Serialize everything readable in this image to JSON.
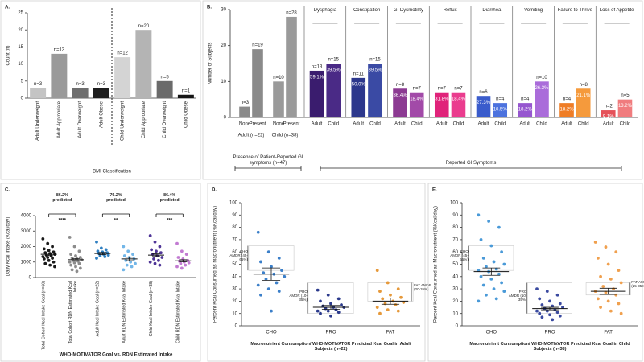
{
  "chart_data": [
    {
      "type": "bar",
      "label": "A.",
      "ylabel": "Count (n)",
      "xlabel": "BMI Classification",
      "categories": [
        "Adult Underweight",
        "Adult Appropriate",
        "Adult Overweight",
        "Adult Obese",
        "Child Underweight",
        "Child Appropriate",
        "Child Overweight",
        "Child Obese"
      ],
      "values": [
        3,
        13,
        3,
        3,
        12,
        20,
        5,
        1
      ],
      "value_labels": [
        "n=3",
        "n=13",
        "n=3",
        "n=3",
        "n=12",
        "n=20",
        "n=5",
        "n=1"
      ],
      "colors": [
        "#c4c4c4",
        "#9a9a9a",
        "#6e6e6e",
        "#1e1e1e",
        "#d4d4d4",
        "#b4b4b4",
        "#6a6a6a",
        "#151515"
      ],
      "ylim": [
        0,
        25
      ],
      "yticks": [
        0,
        5,
        10,
        15,
        20,
        25
      ]
    },
    {
      "type": "grouped_bar",
      "label": "B.",
      "ylabel": "Number of Subjects",
      "ylim": [
        0,
        30
      ],
      "yticks": [
        0,
        10,
        20,
        30
      ],
      "groups": [
        {
          "label": "Adult (n=22)",
          "categories": [
            "None",
            "Present"
          ],
          "values": [
            3,
            19
          ],
          "value_labels": [
            "n=3",
            "n=19"
          ],
          "colors": [
            "#8a8a8a",
            "#8a8a8a"
          ]
        },
        {
          "label": "Child (n=38)",
          "categories": [
            "None",
            "Present"
          ],
          "values": [
            10,
            28
          ],
          "value_labels": [
            "n=10",
            "n=28"
          ],
          "colors": [
            "#9a9a9a",
            "#9a9a9a"
          ]
        },
        {
          "title": "Dysphagia",
          "categories": [
            "Adult",
            "Child"
          ],
          "values": [
            13,
            15
          ],
          "value_labels": [
            "n=13",
            "n=15"
          ],
          "percent_labels": [
            "59.1%",
            "39.5%"
          ],
          "colors": [
            "#3a1c6e",
            "#4a2a86"
          ]
        },
        {
          "title": "Constipation",
          "categories": [
            "Adult",
            "Child"
          ],
          "values": [
            11,
            15
          ],
          "value_labels": [
            "n=11",
            "n=15"
          ],
          "percent_labels": [
            "50.0%",
            "39.5%"
          ],
          "colors": [
            "#2c378c",
            "#3a4aa4"
          ]
        },
        {
          "title": "GI Dysmotility",
          "categories": [
            "Adult",
            "Child"
          ],
          "values": [
            8,
            7
          ],
          "value_labels": [
            "n=8",
            "n=7"
          ],
          "percent_labels": [
            "36.4%",
            "18.4%"
          ],
          "colors": [
            "#8c3a92",
            "#a24aa8"
          ]
        },
        {
          "title": "Reflux",
          "categories": [
            "Adult",
            "Child"
          ],
          "values": [
            7,
            7
          ],
          "value_labels": [
            "n=7",
            "n=7"
          ],
          "percent_labels": [
            "31.8%",
            "18.4%"
          ],
          "colors": [
            "#e0237a",
            "#ea3c8e"
          ]
        },
        {
          "title": "Diarrhea",
          "categories": [
            "Adult",
            "Child"
          ],
          "values": [
            6,
            4
          ],
          "value_labels": [
            "n=6",
            "n=4"
          ],
          "percent_labels": [
            "27.3%",
            "10.5%"
          ],
          "colors": [
            "#3a5ccc",
            "#4c72de"
          ]
        },
        {
          "title": "Vomiting",
          "categories": [
            "Adult",
            "Child"
          ],
          "values": [
            4,
            10
          ],
          "value_labels": [
            "n=4",
            "n=10"
          ],
          "percent_labels": [
            "18.2%",
            "26.3%"
          ],
          "colors": [
            "#9656cf",
            "#aa6cda"
          ]
        },
        {
          "title": "Failure to Thrive",
          "categories": [
            "Adult",
            "Child"
          ],
          "values": [
            4,
            8
          ],
          "value_labels": [
            "n=4",
            "n=8"
          ],
          "percent_labels": [
            "18.2%",
            "21.1%"
          ],
          "colors": [
            "#ef7d26",
            "#f59a3c"
          ]
        },
        {
          "title": "Loss of Appetite",
          "categories": [
            "Adult",
            "Child"
          ],
          "values": [
            2,
            5
          ],
          "value_labels": [
            "n=2",
            "n=5"
          ],
          "percent_labels": [
            "9.1%",
            "13.2%"
          ],
          "colors": [
            "#e5525a",
            "#f07c7e"
          ]
        }
      ],
      "brackets": [
        "Presence of Patient-Reported GI symptoms (n=47)",
        "Reported GI Symptoms"
      ]
    },
    {
      "type": "strip",
      "label": "C.",
      "ylabel": "Daily Kcal Intake (Kcal/day)",
      "xlabel": "WHO-MOTIVATOR Goal vs. RDN Estimated Intake",
      "ylim": [
        0,
        4000
      ],
      "yticks": [
        0,
        1000,
        2000,
        3000,
        4000
      ],
      "series": [
        {
          "name": "Total Cohort Kcal Intake Goal (n=60)",
          "color": "#1a1a1a",
          "mean": 1500,
          "error": 80,
          "values": [
            2500,
            2200,
            2000,
            1850,
            1750,
            1650,
            1600,
            1550,
            1500,
            1450,
            1400,
            1350,
            1300,
            1250,
            1200,
            1100,
            1000,
            900,
            800,
            700
          ]
        },
        {
          "name": "Total Cohort RDN Estimated Kcal Intake",
          "color": "#8c8c8c",
          "mean": 1150,
          "error": 80,
          "values": [
            2600,
            2000,
            1700,
            1500,
            1400,
            1300,
            1250,
            1200,
            1150,
            1100,
            1050,
            1000,
            950,
            900,
            800,
            700,
            600,
            500,
            400
          ]
        },
        {
          "name": "Adult Kcal Intake Goal (n=22)",
          "color": "#2f7fc1",
          "mean": 1550,
          "error": 70,
          "values": [
            2300,
            1900,
            1800,
            1700,
            1650,
            1600,
            1550,
            1500,
            1450,
            1400,
            1350,
            1250
          ]
        },
        {
          "name": "Adult RDN Estimated Kcal Intake",
          "color": "#72b6e8",
          "mean": 1200,
          "error": 110,
          "values": [
            2000,
            1700,
            1500,
            1400,
            1300,
            1200,
            1100,
            1000,
            900,
            800,
            700,
            500
          ]
        },
        {
          "name": "Child Kcal Intake Goal (n=38)",
          "color": "#4f3597",
          "mean": 1450,
          "error": 90,
          "values": [
            2700,
            2300,
            2000,
            1800,
            1700,
            1600,
            1500,
            1400,
            1300,
            1200,
            1100,
            1000,
            900,
            800
          ]
        },
        {
          "name": "Child RDN Estimated Kcal Intake",
          "color": "#c27bd2",
          "mean": 1080,
          "error": 70,
          "values": [
            2200,
            1700,
            1500,
            1300,
            1200,
            1100,
            1050,
            1000,
            950,
            900,
            800,
            700,
            600
          ]
        }
      ],
      "comparisons": [
        {
          "label": "86.2% predicted",
          "sig": "****"
        },
        {
          "label": "76.2% predicted",
          "sig": "**"
        },
        {
          "label": "86.4% predicted",
          "sig": "***"
        }
      ]
    },
    {
      "type": "strip",
      "label": "D.",
      "ylabel": "Percent Kcal Consumed as Macronutrient (%Kcal/day)",
      "xlabel": "Macronutrient Consumption/ WHO-MOTIVATOR Predicted Kcal Goal in Adult Subjects (n=22)",
      "ylim": [
        0,
        100
      ],
      "yticks": [
        0,
        10,
        20,
        30,
        40,
        50,
        60,
        70,
        80,
        90,
        100
      ],
      "series": [
        {
          "name": "CHO",
          "color": "#3b7fc9",
          "mean": 42,
          "error": 5,
          "amdr": {
            "label": "CHO AMDR (45-65%)",
            "range": [
              45,
              65
            ]
          },
          "values": [
            76,
            60,
            55,
            52,
            48,
            45,
            43,
            42,
            40,
            38,
            35,
            33,
            30,
            28,
            25,
            12
          ]
        },
        {
          "name": "PRO",
          "color": "#2b3a8c",
          "mean": 15,
          "error": 1.5,
          "amdr": {
            "label": "PRO AMDR (10-35%)",
            "range": [
              10,
              35
            ]
          },
          "values": [
            29,
            25,
            22,
            20,
            18,
            17,
            16,
            15,
            15,
            14,
            13,
            12,
            12,
            11,
            10,
            8
          ]
        },
        {
          "name": "FAT",
          "color": "#e6993a",
          "mean": 20,
          "error": 2.5,
          "amdr": {
            "label": "FAT AMDR (20-35%)",
            "range": [
              20,
              35
            ]
          },
          "values": [
            45,
            35,
            30,
            28,
            25,
            23,
            22,
            20,
            19,
            18,
            17,
            15,
            13,
            12,
            10
          ]
        }
      ]
    },
    {
      "type": "strip",
      "label": "E.",
      "ylabel": "Percent Kcal Consumed as Macronutrient (%Kcal/day)",
      "xlabel": "Macronutrient Consumption/ WHO-MOTIVATOR Predicted Kcal Goal in Child Subjects (n=38)",
      "ylim": [
        0,
        100
      ],
      "yticks": [
        0,
        10,
        20,
        30,
        40,
        50,
        60,
        70,
        80,
        90,
        100
      ],
      "series": [
        {
          "name": "CHO",
          "color": "#4a9ad8",
          "mean": 44,
          "error": 3,
          "amdr": {
            "label": "CHO AMDR (45-65%)",
            "range": [
              45,
              65
            ]
          },
          "values": [
            90,
            85,
            80,
            70,
            65,
            60,
            55,
            52,
            50,
            48,
            46,
            45,
            44,
            42,
            40,
            38,
            35,
            33,
            30,
            28,
            25,
            22,
            20
          ]
        },
        {
          "name": "PRO",
          "color": "#3a4aa0",
          "mean": 14,
          "error": 1,
          "amdr": {
            "label": "PRO AMDR (10-35%)",
            "range": [
              10,
              35
            ]
          },
          "values": [
            30,
            28,
            25,
            22,
            20,
            18,
            17,
            16,
            15,
            14,
            13,
            12,
            12,
            11,
            10,
            9,
            8,
            7,
            5
          ]
        },
        {
          "name": "FAT",
          "color": "#f0a04e",
          "mean": 28,
          "error": 2.5,
          "amdr": {
            "label": "FAT AMDR (25-35%)",
            "range": [
              25,
              35
            ]
          },
          "values": [
            68,
            64,
            60,
            55,
            50,
            45,
            40,
            38,
            35,
            32,
            30,
            28,
            27,
            25,
            22,
            20,
            18,
            15,
            12,
            10
          ]
        }
      ]
    }
  ]
}
